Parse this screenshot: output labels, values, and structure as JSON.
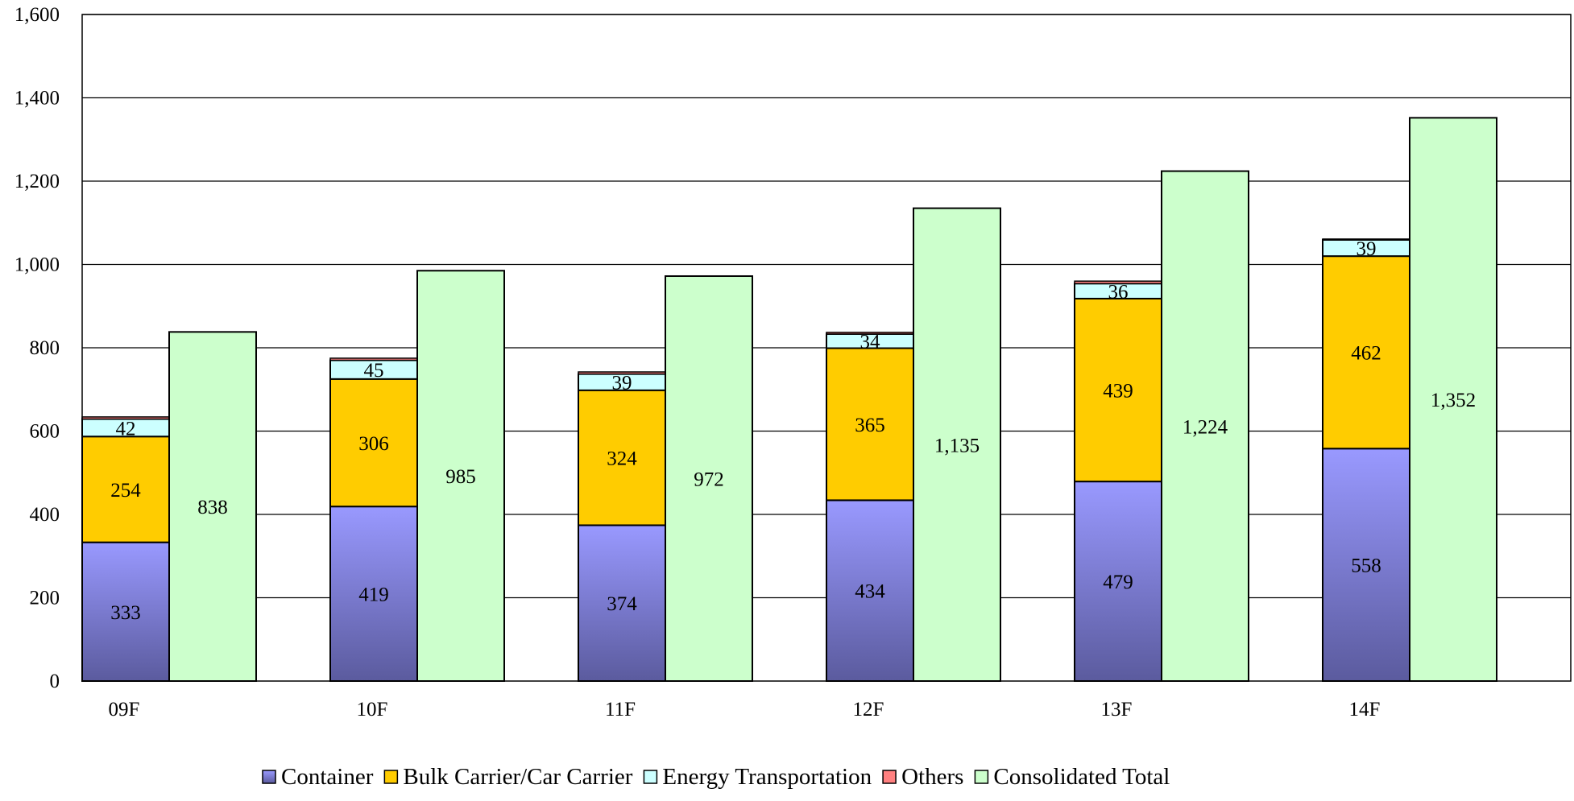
{
  "colors": {
    "container_top": "#9999ff",
    "container_bottom": "#5b5b9e",
    "bulk": "#ffcc00",
    "energy": "#ccffff",
    "others": "#ff8080",
    "consolidated": "#ccffcc",
    "outline": "#000000",
    "grid": "#000000"
  },
  "chart_data": {
    "type": "bar",
    "categories": [
      "09F",
      "10F",
      "11F",
      "12F",
      "13F",
      "14F"
    ],
    "ylim": [
      0,
      1600
    ],
    "yticks": [
      0,
      200,
      400,
      600,
      800,
      1000,
      1200,
      1400,
      1600
    ],
    "ytick_labels": [
      "0",
      "200",
      "400",
      "600",
      "800",
      "1,000",
      "1,200",
      "1,400",
      "1,600"
    ],
    "grid": true,
    "legend_position": "bottom",
    "stacked_series": [
      {
        "name": "Container",
        "values": [
          333,
          419,
          374,
          434,
          479,
          558
        ],
        "labels": [
          "333",
          "419",
          "374",
          "434",
          "479",
          "558"
        ]
      },
      {
        "name": "Bulk Carrier/Car Carrier",
        "values": [
          254,
          306,
          324,
          365,
          439,
          462
        ],
        "labels": [
          "254",
          "306",
          "324",
          "365",
          "439",
          "462"
        ]
      },
      {
        "name": "Energy Transportation",
        "values": [
          42,
          45,
          39,
          34,
          36,
          39
        ],
        "labels": [
          "42",
          "45",
          "39",
          "34",
          "36",
          "39"
        ]
      },
      {
        "name": "Others",
        "values": [
          5,
          5,
          5,
          4,
          6,
          2
        ],
        "labels": [
          "",
          "",
          "",
          "",
          "",
          ""
        ]
      }
    ],
    "total_series": {
      "name": "Consolidated Total",
      "values": [
        838,
        985,
        972,
        1135,
        1224,
        1352
      ],
      "labels": [
        "838",
        "985",
        "972",
        "1,135",
        "1,224",
        "1,352"
      ]
    }
  }
}
